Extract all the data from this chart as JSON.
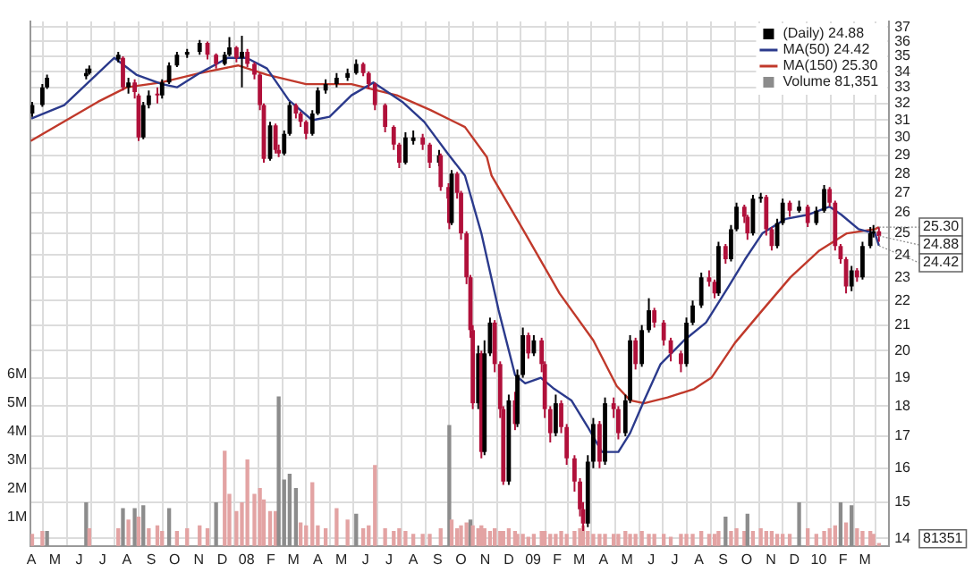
{
  "chart_data": {
    "type": "candlestick",
    "legend": "top right",
    "grid": true,
    "log": "y",
    "marker": "none",
    "xlim": [
      "2007-03-31",
      "2010-04-01"
    ],
    "xticks": [
      {
        "value": "2007-04-01",
        "label": "A"
      },
      {
        "value": "2007-05-01",
        "label": "M"
      },
      {
        "value": "2007-06-01",
        "label": "J"
      },
      {
        "value": "2007-07-01",
        "label": "J"
      },
      {
        "value": "2007-08-01",
        "label": "A"
      },
      {
        "value": "2007-09-01",
        "label": "S"
      },
      {
        "value": "2007-10-01",
        "label": "O"
      },
      {
        "value": "2007-11-01",
        "label": "N"
      },
      {
        "value": "2007-12-01",
        "label": "D"
      },
      {
        "value": "2008-01-01",
        "label": "08"
      },
      {
        "value": "2008-02-01",
        "label": "F"
      },
      {
        "value": "2008-03-01",
        "label": "M"
      },
      {
        "value": "2008-04-01",
        "label": "A"
      },
      {
        "value": "2008-05-01",
        "label": "M"
      },
      {
        "value": "2008-06-01",
        "label": "J"
      },
      {
        "value": "2008-07-01",
        "label": "J"
      },
      {
        "value": "2008-08-01",
        "label": "A"
      },
      {
        "value": "2008-09-01",
        "label": "S"
      },
      {
        "value": "2008-10-01",
        "label": "O"
      },
      {
        "value": "2008-11-01",
        "label": "N"
      },
      {
        "value": "2008-12-01",
        "label": "D"
      },
      {
        "value": "2009-01-01",
        "label": "09"
      },
      {
        "value": "2009-02-01",
        "label": "F"
      },
      {
        "value": "2009-03-01",
        "label": "M"
      },
      {
        "value": "2009-04-01",
        "label": "A"
      },
      {
        "value": "2009-05-01",
        "label": "M"
      },
      {
        "value": "2009-06-01",
        "label": "J"
      },
      {
        "value": "2009-07-01",
        "label": "J"
      },
      {
        "value": "2009-08-01",
        "label": "A"
      },
      {
        "value": "2009-09-01",
        "label": "S"
      },
      {
        "value": "2009-10-01",
        "label": "O"
      },
      {
        "value": "2009-11-01",
        "label": "N"
      },
      {
        "value": "2009-12-01",
        "label": "D"
      },
      {
        "value": "2010-01-01",
        "label": "10"
      },
      {
        "value": "2010-02-01",
        "label": "F"
      },
      {
        "value": "2010-03-01",
        "label": "M"
      }
    ],
    "ylim": [
      13.8,
      37.4
    ],
    "yticks": [
      14,
      15,
      16,
      17,
      18,
      19,
      20,
      21,
      22,
      23,
      24,
      25,
      26,
      27,
      28,
      29,
      30,
      31,
      32,
      33,
      34,
      35,
      36,
      37
    ],
    "y2lim": [
      0,
      18.3
    ],
    "y2ticks": [
      {
        "value": 1,
        "label": "1M"
      },
      {
        "value": 2,
        "label": "2M"
      },
      {
        "value": 3,
        "label": "3M"
      },
      {
        "value": 4,
        "label": "4M"
      },
      {
        "value": 5,
        "label": "5M"
      },
      {
        "value": 6,
        "label": "6M"
      }
    ],
    "annotations": [
      {
        "text": "25.30",
        "x": "2010-03-19",
        "y": 25.3
      },
      {
        "text": "24.88",
        "x": "2010-03-19",
        "y": 24.88
      },
      {
        "text": "24.42",
        "x": "2010-03-19",
        "y": 24.42
      },
      "81351"
    ],
    "x": [
      "2007-04-02",
      "2007-04-15",
      "2007-04-21",
      "2007-06-10",
      "2007-06-14",
      "2007-07-21",
      "2007-07-27",
      "2007-08-03",
      "2007-08-11",
      "2007-08-16",
      "2007-08-22",
      "2007-08-29",
      "2007-09-09",
      "2007-09-15",
      "2007-09-24",
      "2007-10-04",
      "2007-10-17",
      "2007-11-02",
      "2007-11-12",
      "2007-11-23",
      "2007-12-04",
      "2007-12-10",
      "2007-12-19",
      "2007-12-26",
      "2008-01-02",
      "2008-01-11",
      "2008-01-18",
      "2008-01-23",
      "2008-01-31",
      "2008-02-07",
      "2008-02-11",
      "2008-02-18",
      "2008-02-25",
      "2008-03-04",
      "2008-03-10",
      "2008-03-17",
      "2008-03-25",
      "2008-04-01",
      "2008-04-11",
      "2008-04-25",
      "2008-05-09",
      "2008-05-20",
      "2008-05-29",
      "2008-06-05",
      "2008-06-13",
      "2008-06-26",
      "2008-07-07",
      "2008-07-14",
      "2008-07-22",
      "2008-08-01",
      "2008-08-13",
      "2008-08-22",
      "2008-09-03",
      "2008-09-05",
      "2008-09-15",
      "2008-09-16",
      "2008-09-19",
      "2008-09-26",
      "2008-10-01",
      "2008-10-08",
      "2008-10-13",
      "2008-10-16",
      "2008-10-23",
      "2008-10-27",
      "2008-10-31",
      "2008-11-07",
      "2008-11-13",
      "2008-11-20",
      "2008-11-24",
      "2008-12-01",
      "2008-12-09",
      "2008-12-12",
      "2008-12-19",
      "2008-12-26",
      "2009-01-02",
      "2009-01-12",
      "2009-01-16",
      "2009-01-23",
      "2009-01-30",
      "2009-02-06",
      "2009-02-13",
      "2009-02-23",
      "2009-03-02",
      "2009-03-06",
      "2009-03-12",
      "2009-03-19",
      "2009-03-27",
      "2009-04-03",
      "2009-04-14",
      "2009-04-20",
      "2009-04-29",
      "2009-05-05",
      "2009-05-12",
      "2009-05-20",
      "2009-05-29",
      "2009-06-05",
      "2009-06-17",
      "2009-06-26",
      "2009-07-09",
      "2009-07-16",
      "2009-07-24",
      "2009-08-04",
      "2009-08-14",
      "2009-08-21",
      "2009-08-26",
      "2009-09-04",
      "2009-09-11",
      "2009-09-18",
      "2009-09-28",
      "2009-10-02",
      "2009-10-09",
      "2009-10-19",
      "2009-10-26",
      "2009-11-02",
      "2009-11-09",
      "2009-11-16",
      "2009-11-25",
      "2009-12-07",
      "2009-12-18",
      "2009-12-29",
      "2010-01-08",
      "2010-01-15",
      "2010-01-22",
      "2010-01-29",
      "2010-02-05",
      "2010-02-12",
      "2010-02-19",
      "2010-02-26",
      "2010-03-08",
      "2010-03-12",
      "2010-03-19"
    ],
    "series": [
      {
        "name": "(Daily) 24.88",
        "ohlc": [
          [
            31.4,
            32.1,
            31.2,
            31.9
          ],
          [
            31.9,
            33.2,
            31.8,
            33.0
          ],
          [
            33.0,
            33.8,
            32.9,
            33.6
          ],
          [
            33.7,
            34.2,
            33.5,
            33.9
          ],
          [
            33.9,
            34.4,
            33.8,
            34.2
          ],
          [
            34.8,
            35.3,
            34.6,
            35.1
          ],
          [
            34.9,
            35.0,
            32.8,
            33.0
          ],
          [
            33.0,
            33.6,
            32.6,
            33.3
          ],
          [
            33.3,
            33.5,
            32.3,
            32.7
          ],
          [
            32.5,
            32.6,
            29.8,
            30.0
          ],
          [
            30.0,
            32.1,
            29.9,
            31.9
          ],
          [
            31.9,
            32.8,
            31.7,
            32.5
          ],
          [
            32.6,
            33.0,
            32.0,
            32.5
          ],
          [
            32.5,
            33.5,
            32.3,
            33.3
          ],
          [
            33.3,
            34.6,
            33.2,
            34.4
          ],
          [
            34.4,
            35.3,
            34.3,
            35.1
          ],
          [
            35.1,
            35.5,
            34.9,
            35.3
          ],
          [
            35.3,
            36.1,
            35.1,
            35.9
          ],
          [
            35.9,
            36.0,
            34.8,
            35.1
          ],
          [
            35.1,
            35.2,
            34.2,
            34.5
          ],
          [
            34.5,
            35.3,
            34.4,
            35.1
          ],
          [
            35.1,
            36.3,
            35.0,
            35.6
          ],
          [
            35.6,
            35.7,
            34.6,
            34.9
          ],
          [
            34.9,
            36.4,
            33.0,
            35.3
          ],
          [
            35.3,
            35.5,
            34.3,
            34.5
          ],
          [
            34.5,
            34.6,
            33.5,
            33.8
          ],
          [
            33.8,
            33.9,
            31.6,
            31.9
          ],
          [
            31.9,
            32.0,
            28.6,
            28.8
          ],
          [
            28.8,
            30.9,
            28.7,
            30.7
          ],
          [
            30.7,
            30.8,
            29.1,
            29.3
          ],
          [
            29.3,
            29.6,
            28.9,
            29.1
          ],
          [
            29.1,
            30.4,
            29.0,
            30.2
          ],
          [
            30.2,
            32.1,
            30.1,
            31.9
          ],
          [
            31.9,
            32.0,
            31.1,
            31.4
          ],
          [
            31.4,
            31.5,
            30.6,
            30.9
          ],
          [
            30.9,
            31.0,
            29.9,
            30.2
          ],
          [
            30.2,
            31.6,
            30.1,
            31.4
          ],
          [
            31.4,
            33.0,
            31.3,
            32.8
          ],
          [
            32.8,
            33.5,
            32.6,
            33.2
          ],
          [
            33.2,
            33.9,
            33.0,
            33.6
          ],
          [
            33.6,
            34.2,
            33.4,
            33.9
          ],
          [
            33.9,
            34.8,
            33.8,
            34.5
          ],
          [
            34.5,
            34.6,
            33.7,
            33.9
          ],
          [
            33.9,
            34.0,
            32.9,
            33.2
          ],
          [
            33.2,
            33.3,
            31.6,
            31.9
          ],
          [
            31.9,
            32.0,
            30.3,
            30.6
          ],
          [
            30.6,
            30.7,
            29.3,
            29.6
          ],
          [
            29.6,
            29.7,
            28.3,
            28.6
          ],
          [
            28.6,
            30.3,
            28.5,
            30.0
          ],
          [
            29.8,
            30.4,
            29.6,
            30.0
          ],
          [
            30.0,
            30.2,
            29.3,
            29.6
          ],
          [
            29.6,
            29.7,
            28.3,
            28.6
          ],
          [
            28.6,
            29.3,
            28.4,
            29.0
          ],
          [
            29.0,
            29.1,
            27.1,
            27.3
          ],
          [
            27.3,
            27.5,
            26.4,
            26.7
          ],
          [
            26.7,
            26.8,
            25.2,
            25.5
          ],
          [
            25.5,
            28.2,
            25.4,
            28.0
          ],
          [
            28.0,
            28.1,
            26.7,
            27.0
          ],
          [
            27.0,
            27.1,
            24.7,
            25.0
          ],
          [
            25.0,
            25.1,
            22.7,
            23.0
          ],
          [
            23.0,
            23.1,
            20.5,
            20.8
          ],
          [
            20.8,
            21.0,
            17.9,
            18.1
          ],
          [
            18.1,
            20.2,
            17.9,
            19.9
          ],
          [
            19.9,
            20.0,
            16.3,
            16.5
          ],
          [
            16.5,
            20.4,
            16.4,
            19.9
          ],
          [
            19.9,
            21.3,
            19.8,
            21.1
          ],
          [
            21.1,
            21.2,
            19.2,
            19.5
          ],
          [
            19.5,
            19.6,
            17.6,
            17.9
          ],
          [
            17.9,
            18.0,
            15.5,
            15.6
          ],
          [
            15.6,
            18.4,
            15.5,
            18.2
          ],
          [
            18.2,
            18.5,
            17.2,
            17.4
          ],
          [
            17.4,
            19.3,
            17.3,
            19.1
          ],
          [
            19.1,
            20.9,
            19.0,
            20.6
          ],
          [
            20.6,
            20.7,
            19.7,
            19.9
          ],
          [
            19.9,
            20.6,
            19.8,
            20.4
          ],
          [
            20.4,
            20.5,
            19.2,
            19.5
          ],
          [
            19.5,
            19.6,
            17.6,
            17.9
          ],
          [
            17.9,
            18.0,
            16.8,
            17.1
          ],
          [
            17.1,
            18.4,
            17.0,
            18.1
          ],
          [
            18.1,
            18.2,
            17.1,
            17.3
          ],
          [
            17.3,
            17.4,
            16.1,
            16.3
          ],
          [
            16.3,
            16.4,
            15.3,
            15.6
          ],
          [
            15.6,
            15.7,
            14.6,
            14.8
          ],
          [
            14.8,
            15.0,
            14.2,
            14.4
          ],
          [
            14.4,
            16.4,
            14.3,
            16.2
          ],
          [
            16.2,
            17.6,
            16.0,
            17.4
          ],
          [
            17.4,
            17.5,
            16.0,
            16.2
          ],
          [
            16.2,
            18.3,
            16.1,
            18.1
          ],
          [
            18.1,
            18.3,
            17.6,
            17.9
          ],
          [
            17.9,
            18.0,
            16.9,
            17.1
          ],
          [
            17.1,
            18.4,
            17.0,
            18.2
          ],
          [
            18.2,
            20.6,
            18.1,
            20.4
          ],
          [
            20.4,
            20.5,
            19.3,
            19.5
          ],
          [
            19.5,
            21.0,
            19.4,
            20.8
          ],
          [
            20.8,
            22.1,
            20.7,
            21.6
          ],
          [
            21.6,
            21.7,
            20.9,
            21.1
          ],
          [
            21.1,
            21.2,
            20.2,
            20.4
          ],
          [
            20.4,
            20.5,
            19.6,
            19.9
          ],
          [
            19.9,
            20.0,
            19.2,
            19.5
          ],
          [
            19.5,
            21.3,
            19.4,
            21.1
          ],
          [
            21.1,
            22.0,
            21.0,
            21.8
          ],
          [
            21.8,
            23.2,
            21.7,
            23.0
          ],
          [
            23.0,
            23.3,
            22.6,
            22.8
          ],
          [
            22.8,
            22.9,
            22.1,
            22.3
          ],
          [
            22.3,
            24.6,
            22.2,
            24.4
          ],
          [
            24.4,
            24.5,
            23.6,
            23.8
          ],
          [
            23.8,
            25.4,
            23.7,
            25.2
          ],
          [
            25.2,
            26.5,
            25.1,
            26.3
          ],
          [
            26.3,
            26.4,
            25.5,
            25.8
          ],
          [
            25.8,
            25.9,
            24.7,
            25.0
          ],
          [
            25.0,
            26.9,
            24.9,
            26.7
          ],
          [
            26.7,
            27.0,
            26.5,
            26.8
          ],
          [
            26.8,
            26.9,
            24.9,
            25.2
          ],
          [
            25.2,
            25.3,
            24.2,
            24.4
          ],
          [
            24.4,
            25.7,
            24.3,
            25.5
          ],
          [
            25.5,
            26.7,
            25.4,
            26.5
          ],
          [
            26.5,
            26.6,
            25.8,
            26.1
          ],
          [
            26.1,
            26.6,
            26.0,
            26.3
          ],
          [
            26.3,
            26.4,
            25.3,
            25.5
          ],
          [
            25.5,
            26.3,
            25.4,
            26.1
          ],
          [
            26.1,
            27.4,
            26.0,
            27.2
          ],
          [
            27.2,
            27.3,
            26.3,
            26.5
          ],
          [
            26.5,
            26.6,
            24.2,
            24.4
          ],
          [
            24.4,
            24.5,
            23.6,
            23.8
          ],
          [
            23.8,
            23.9,
            22.3,
            22.6
          ],
          [
            22.6,
            23.5,
            22.4,
            23.3
          ],
          [
            23.3,
            23.4,
            22.8,
            23.0
          ],
          [
            23.0,
            24.6,
            22.9,
            24.4
          ],
          [
            24.4,
            25.3,
            24.3,
            25.0
          ],
          [
            25.0,
            25.4,
            24.8,
            25.1
          ],
          [
            25.1,
            25.3,
            24.6,
            24.88
          ]
        ],
        "colors": [
          "#000000",
          "#000000",
          "#000000",
          "#000000",
          "#000000",
          "#000000",
          "#b0103a",
          "#000000",
          "#b0103a",
          "#b0103a",
          "#000000",
          "#000000",
          "#b0103a",
          "#000000",
          "#000000",
          "#000000",
          "#000000",
          "#000000",
          "#b0103a",
          "#b0103a",
          "#000000",
          "#000000",
          "#b0103a",
          "#000000",
          "#b0103a",
          "#b0103a",
          "#b0103a",
          "#b0103a",
          "#000000",
          "#b0103a",
          "#b0103a",
          "#000000",
          "#000000",
          "#b0103a",
          "#b0103a",
          "#b0103a",
          "#000000",
          "#000000",
          "#000000",
          "#000000",
          "#000000",
          "#000000",
          "#b0103a",
          "#b0103a",
          "#b0103a",
          "#b0103a",
          "#b0103a",
          "#b0103a",
          "#000000",
          "#000000",
          "#b0103a",
          "#b0103a",
          "#000000",
          "#b0103a",
          "#b0103a",
          "#b0103a",
          "#000000",
          "#b0103a",
          "#b0103a",
          "#b0103a",
          "#b0103a",
          "#b0103a",
          "#000000",
          "#b0103a",
          "#000000",
          "#000000",
          "#b0103a",
          "#b0103a",
          "#b0103a",
          "#000000",
          "#b0103a",
          "#000000",
          "#000000",
          "#b0103a",
          "#000000",
          "#b0103a",
          "#b0103a",
          "#b0103a",
          "#000000",
          "#b0103a",
          "#b0103a",
          "#b0103a",
          "#b0103a",
          "#b0103a",
          "#000000",
          "#000000",
          "#b0103a",
          "#000000",
          "#b0103a",
          "#b0103a",
          "#000000",
          "#000000",
          "#b0103a",
          "#000000",
          "#000000",
          "#b0103a",
          "#b0103a",
          "#b0103a",
          "#b0103a",
          "#000000",
          "#000000",
          "#000000",
          "#b0103a",
          "#b0103a",
          "#000000",
          "#b0103a",
          "#000000",
          "#000000",
          "#b0103a",
          "#b0103a",
          "#000000",
          "#000000",
          "#b0103a",
          "#b0103a",
          "#000000",
          "#000000",
          "#b0103a",
          "#000000",
          "#b0103a",
          "#000000",
          "#000000",
          "#b0103a",
          "#b0103a",
          "#b0103a",
          "#b0103a",
          "#000000",
          "#b0103a",
          "#000000",
          "#000000",
          "#000000",
          "#b0103a"
        ]
      },
      {
        "name": "MA(50) 24.42",
        "type": "line",
        "color": "#2b3a8c",
        "x": [
          "2007-04-01",
          "2007-05-13",
          "2007-07-16",
          "2007-08-13",
          "2007-09-15",
          "2007-10-04",
          "2007-11-02",
          "2007-12-08",
          "2008-01-01",
          "2008-01-27",
          "2008-02-24",
          "2008-03-25",
          "2008-04-16",
          "2008-05-14",
          "2008-06-11",
          "2008-07-18",
          "2008-08-15",
          "2008-09-14",
          "2008-10-06",
          "2008-10-27",
          "2008-11-18",
          "2008-12-09",
          "2008-12-22",
          "2009-01-11",
          "2009-01-28",
          "2009-02-19",
          "2009-03-12",
          "2009-03-30",
          "2009-04-20",
          "2009-05-05",
          "2009-05-23",
          "2009-06-13",
          "2009-07-13",
          "2009-08-10",
          "2009-09-08",
          "2009-09-29",
          "2009-10-21",
          "2009-11-20",
          "2009-12-18",
          "2010-01-15",
          "2010-01-30",
          "2010-02-21",
          "2010-03-14",
          "2010-03-19"
        ],
        "values": [
          31.1,
          31.9,
          34.9,
          33.8,
          33.2,
          33.0,
          33.9,
          34.9,
          34.9,
          34.2,
          32.2,
          31.0,
          31.2,
          32.5,
          33.3,
          32.1,
          30.9,
          29.1,
          27.9,
          25.0,
          21.6,
          19.1,
          18.8,
          19.0,
          18.6,
          18.2,
          17.3,
          16.5,
          16.5,
          17.1,
          18.2,
          19.5,
          20.4,
          21.1,
          22.6,
          23.8,
          25.0,
          25.7,
          25.9,
          26.3,
          25.9,
          25.2,
          25.0,
          24.42
        ]
      },
      {
        "name": "MA(150) 25.30",
        "type": "line",
        "color": "#c0392b",
        "x": [
          "2007-03-31",
          "2007-06-25",
          "2007-08-01",
          "2007-09-13",
          "2007-11-02",
          "2007-12-21",
          "2008-01-27",
          "2008-03-17",
          "2008-05-14",
          "2008-07-11",
          "2008-08-23",
          "2008-10-06",
          "2008-11-03",
          "2008-11-09",
          "2008-12-22",
          "2009-02-04",
          "2009-03-19",
          "2009-04-18",
          "2009-05-05",
          "2009-05-23",
          "2009-06-22",
          "2009-07-26",
          "2009-08-17",
          "2009-09-16",
          "2009-10-21",
          "2009-11-26",
          "2010-01-02",
          "2010-02-06",
          "2010-03-14",
          "2010-03-19"
        ],
        "values": [
          29.8,
          32.1,
          33.0,
          33.3,
          33.9,
          34.4,
          33.8,
          33.2,
          33.2,
          32.5,
          31.6,
          30.6,
          28.9,
          27.9,
          25.0,
          22.3,
          20.4,
          18.7,
          18.2,
          18.1,
          18.3,
          18.6,
          19.0,
          20.3,
          21.6,
          23.0,
          24.2,
          25.0,
          25.2,
          25.3
        ]
      },
      {
        "name": "Volume 81,351",
        "type": "bar",
        "axis": "y2",
        "values": [
          0.4,
          0.5,
          0.5,
          1.5,
          0.6,
          0.6,
          1.3,
          0.9,
          1.3,
          1.0,
          1.4,
          0.6,
          0.7,
          0.5,
          1.3,
          0.5,
          0.6,
          0.7,
          0.6,
          1.5,
          3.3,
          1.8,
          1.2,
          1.5,
          3.0,
          1.8,
          2.0,
          1.6,
          1.2,
          1.2,
          5.2,
          2.3,
          2.5,
          2.0,
          0.8,
          0.7,
          2.2,
          0.7,
          0.6,
          1.3,
          0.9,
          1.1,
          0.6,
          0.7,
          2.8,
          0.6,
          0.5,
          0.6,
          0.5,
          0.4,
          0.4,
          0.4,
          null,
          0.6,
          null,
          4.2,
          0.9,
          0.6,
          0.7,
          0.8,
          0.9,
          0.7,
          0.6,
          0.7,
          0.6,
          0.5,
          0.6,
          0.5,
          0.5,
          0.6,
          0.5,
          0.4,
          0.4,
          0.3,
          0.4,
          0.5,
          0.5,
          0.4,
          0.4,
          0.5,
          0.4,
          0.5,
          0.6,
          0.7,
          0.5,
          0.4,
          0.4,
          0.4,
          0.4,
          0.4,
          0.5,
          0.4,
          0.4,
          0.5,
          0.4,
          0.4,
          0.4,
          0.3,
          0.4,
          0.4,
          0.4,
          0.5,
          0.4,
          0.4,
          0.5,
          1.0,
          0.5,
          0.6,
          0.5,
          1.1,
          0.5,
          0.6,
          0.5,
          0.5,
          0.4,
          0.4,
          0.4,
          1.5,
          0.6,
          0.4,
          0.5,
          0.6,
          0.7,
          1.5,
          0.8,
          1.4,
          0.6,
          0.5,
          0.5,
          0.4,
          0.08
        ],
        "colors": [
          "#e3a3a3",
          "#e3a3a3",
          "#8c8c8c",
          "#8c8c8c",
          "#e3a3a3",
          "#e3a3a3",
          "#8c8c8c",
          "#e3a3a3",
          "#8c8c8c",
          "#e3a3a3",
          "#8c8c8c",
          "#e3a3a3",
          "#e3a3a3",
          "#e3a3a3",
          "#8c8c8c",
          "#e3a3a3",
          "#e3a3a3",
          "#e3a3a3",
          "#e3a3a3",
          "#8c8c8c",
          "#e3a3a3",
          "#e3a3a3",
          "#e3a3a3",
          "#e3a3a3",
          "#e3a3a3",
          "#e3a3a3",
          "#e3a3a3",
          "#e3a3a3",
          "#e3a3a3",
          "#e3a3a3",
          "#8c8c8c",
          "#8c8c8c",
          "#8c8c8c",
          "#8c8c8c",
          "#e3a3a3",
          "#e3a3a3",
          "#e3a3a3",
          "#e3a3a3",
          "#e3a3a3",
          "#e3a3a3",
          "#e3a3a3",
          "#8c8c8c",
          "#e3a3a3",
          "#e3a3a3",
          "#e3a3a3",
          "#e3a3a3",
          "#e3a3a3",
          "#e3a3a3",
          "#e3a3a3",
          "#e3a3a3",
          "#e3a3a3",
          "#e3a3a3",
          "#e3a3a3",
          "#e3a3a3",
          "#e3a3a3",
          "#8c8c8c",
          "#e3a3a3",
          "#e3a3a3",
          "#e3a3a3",
          "#e3a3a3",
          "#8c8c8c",
          "#e3a3a3",
          "#e3a3a3",
          "#e3a3a3",
          "#e3a3a3",
          "#e3a3a3",
          "#e3a3a3",
          "#e3a3a3",
          "#e3a3a3",
          "#e3a3a3",
          "#e3a3a3",
          "#e3a3a3",
          "#e3a3a3",
          "#e3a3a3",
          "#e3a3a3",
          "#e3a3a3",
          "#e3a3a3",
          "#e3a3a3",
          "#e3a3a3",
          "#e3a3a3",
          "#e3a3a3",
          "#e3a3a3",
          "#e3a3a3",
          "#e3a3a3",
          "#e3a3a3",
          "#e3a3a3",
          "#e3a3a3",
          "#e3a3a3",
          "#e3a3a3",
          "#e3a3a3",
          "#e3a3a3",
          "#e3a3a3",
          "#e3a3a3",
          "#e3a3a3",
          "#e3a3a3",
          "#e3a3a3",
          "#e3a3a3",
          "#e3a3a3",
          "#e3a3a3",
          "#e3a3a3",
          "#e3a3a3",
          "#e3a3a3",
          "#e3a3a3",
          "#e3a3a3",
          "#e3a3a3",
          "#8c8c8c",
          "#e3a3a3",
          "#e3a3a3",
          "#e3a3a3",
          "#8c8c8c",
          "#e3a3a3",
          "#e3a3a3",
          "#e3a3a3",
          "#e3a3a3",
          "#e3a3a3",
          "#e3a3a3",
          "#e3a3a3",
          "#8c8c8c",
          "#e3a3a3",
          "#e3a3a3",
          "#e3a3a3",
          "#e3a3a3",
          "#e3a3a3",
          "#8c8c8c",
          "#e3a3a3",
          "#8c8c8c",
          "#e3a3a3",
          "#e3a3a3",
          "#e3a3a3",
          "#e3a3a3",
          "#e3a3a3"
        ]
      }
    ]
  }
}
